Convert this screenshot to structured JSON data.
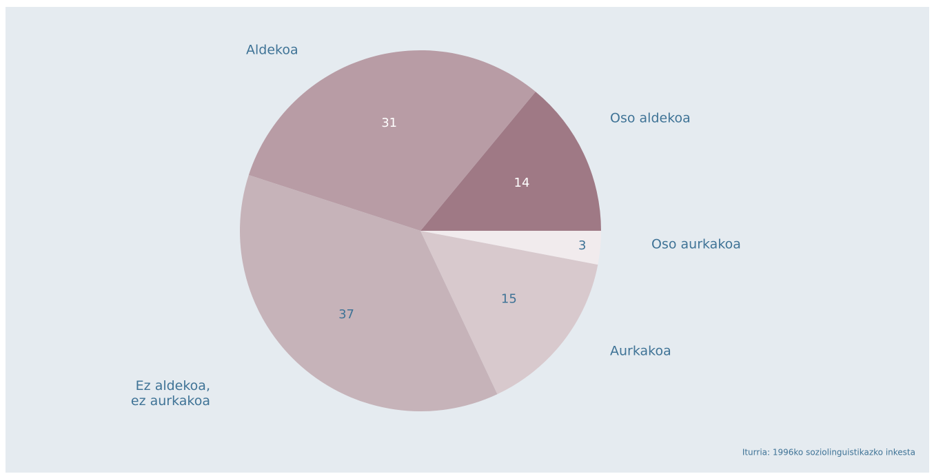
{
  "chart_data": {
    "type": "pie",
    "categories": [
      "Oso aldekoa",
      "Aldekoa",
      "Ez aldekoa,\nez aurkakoa",
      "Aurkakoa",
      "Oso aurkakoa"
    ],
    "values": [
      14,
      31,
      37,
      15,
      3
    ],
    "colors": [
      "#9f7985",
      "#b89ca5",
      "#c6b3b9",
      "#d8c9cd",
      "#f1ebed"
    ],
    "source": "Iturria: 1996ko soziolinguistikazko inkesta"
  }
}
